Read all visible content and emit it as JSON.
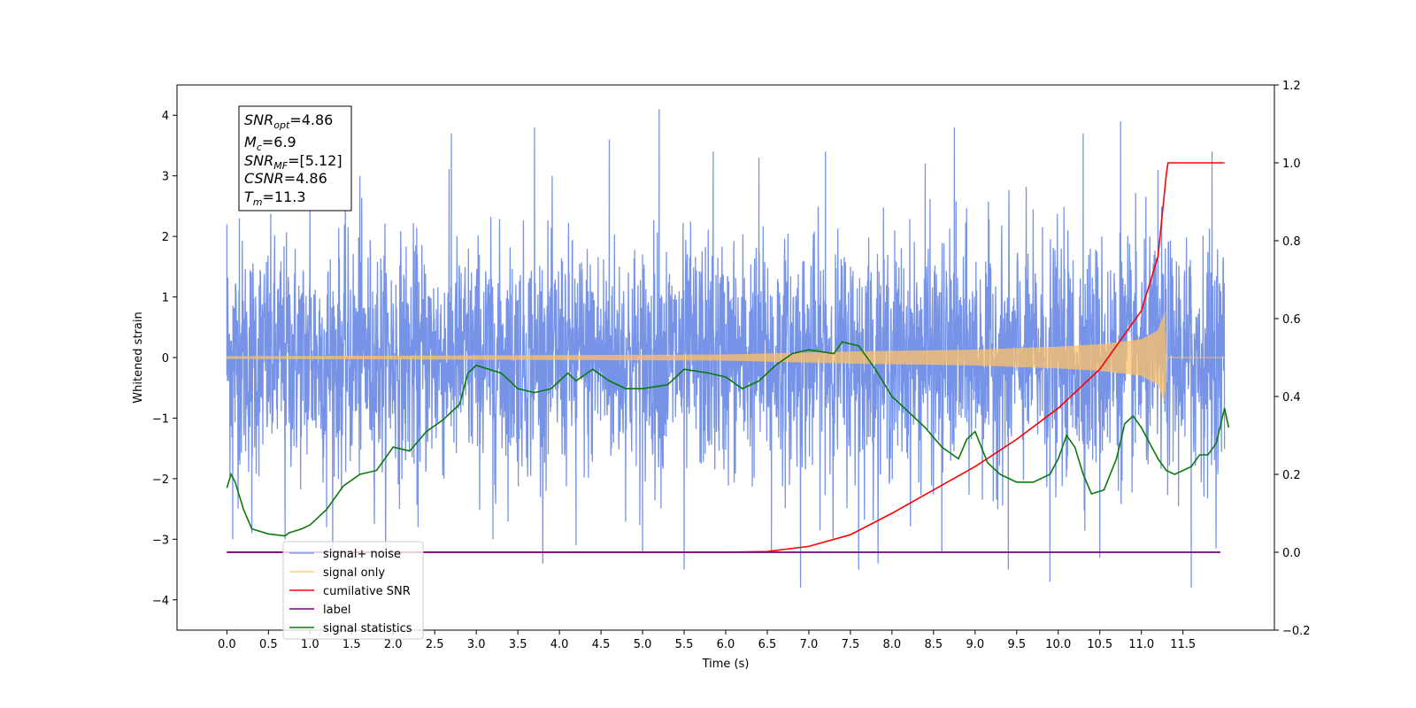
{
  "chart_data": {
    "type": "line",
    "xlabel": "Time (s)",
    "ylabel": "Whitened strain",
    "xlim": [
      -0.6,
      12.6
    ],
    "ylim": [
      -4.5,
      4.5
    ],
    "y2lim": [
      -0.2,
      1.2
    ],
    "x_ticks": [
      "0.0",
      "0.5",
      "1.0",
      "1.5",
      "2.0",
      "2.5",
      "3.0",
      "3.5",
      "4.0",
      "4.5",
      "5.0",
      "5.5",
      "6.0",
      "6.5",
      "7.0",
      "7.5",
      "8.0",
      "8.5",
      "9.0",
      "9.5",
      "10.0",
      "10.5",
      "11.0",
      "11.5"
    ],
    "y_ticks": [
      "4",
      "3",
      "2",
      "1",
      "0",
      "−1",
      "−2",
      "−3",
      "−4"
    ],
    "y2_ticks": [
      "1.2",
      "1.0",
      "0.8",
      "0.6",
      "0.4",
      "0.2",
      "0.0",
      "−0.2"
    ],
    "grid": false,
    "legend_position": "lower-left",
    "annotation": {
      "snr_opt": "=4.86",
      "mc": "=6.9",
      "snr_mf": "=[5.12]",
      "csnr": "=4.86",
      "tm": "=11.3"
    },
    "series": [
      {
        "name": "signal+ noise",
        "axis": "left",
        "color": "#6f8de6",
        "description": "whitened noise with occasional peaks",
        "x_range": [
          0.0,
          12.0
        ],
        "points": [
          [
            0.0,
            2.2
          ],
          [
            0.07,
            -3.0
          ],
          [
            0.15,
            2.3
          ],
          [
            0.3,
            -2.9
          ],
          [
            0.7,
            -3.0
          ],
          [
            1.0,
            2.5
          ],
          [
            1.2,
            -2.8
          ],
          [
            1.6,
            3.0
          ],
          [
            2.3,
            -2.8
          ],
          [
            2.7,
            3.7
          ],
          [
            3.2,
            -3.0
          ],
          [
            3.7,
            3.8
          ],
          [
            4.2,
            -3.1
          ],
          [
            4.6,
            3.6
          ],
          [
            5.0,
            -3.2
          ],
          [
            5.2,
            4.1
          ],
          [
            5.5,
            -3.5
          ],
          [
            5.85,
            3.4
          ],
          [
            6.4,
            3.3
          ],
          [
            6.55,
            -3.2
          ],
          [
            6.9,
            -3.8
          ],
          [
            7.2,
            3.4
          ],
          [
            7.6,
            -3.5
          ],
          [
            8.4,
            3.2
          ],
          [
            8.6,
            -3.2
          ],
          [
            8.75,
            3.8
          ],
          [
            9.4,
            -3.5
          ],
          [
            9.9,
            -3.7
          ],
          [
            10.3,
            3.7
          ],
          [
            10.5,
            -3.3
          ],
          [
            10.75,
            3.9
          ],
          [
            11.2,
            3.1
          ],
          [
            11.6,
            -3.8
          ],
          [
            11.85,
            3.4
          ],
          [
            11.9,
            -1.9
          ]
        ]
      },
      {
        "name": "signal only",
        "axis": "left",
        "color": "#ffc266",
        "description": "chirp waveform, amplitude grows until merger near 11.3 s",
        "x_range": [
          0.0,
          12.0
        ],
        "envelope": [
          [
            0.0,
            0.02
          ],
          [
            6.0,
            0.05
          ],
          [
            7.5,
            0.1
          ],
          [
            9.0,
            0.13
          ],
          [
            10.0,
            0.18
          ],
          [
            10.5,
            0.22
          ],
          [
            11.0,
            0.3
          ],
          [
            11.2,
            0.45
          ],
          [
            11.28,
            0.75
          ],
          [
            11.3,
            0.0
          ],
          [
            12.0,
            0.0
          ]
        ]
      },
      {
        "name": "cumilative SNR",
        "axis": "right",
        "color": "#ff0000",
        "points": [
          [
            0.0,
            0.0
          ],
          [
            6.0,
            0.0
          ],
          [
            6.5,
            0.002
          ],
          [
            7.0,
            0.015
          ],
          [
            7.5,
            0.045
          ],
          [
            8.0,
            0.1
          ],
          [
            8.5,
            0.16
          ],
          [
            9.0,
            0.22
          ],
          [
            9.5,
            0.29
          ],
          [
            10.0,
            0.37
          ],
          [
            10.5,
            0.47
          ],
          [
            11.0,
            0.62
          ],
          [
            11.2,
            0.76
          ],
          [
            11.3,
            0.97
          ],
          [
            11.32,
            1.0
          ],
          [
            12.0,
            1.0
          ]
        ]
      },
      {
        "name": "label",
        "axis": "right",
        "color": "#800080",
        "points": [
          [
            0.0,
            0.0
          ],
          [
            11.95,
            0.0
          ]
        ]
      },
      {
        "name": "signal statistics",
        "axis": "right",
        "color": "#0b7a0b",
        "points": [
          [
            0.0,
            0.165
          ],
          [
            0.05,
            0.2
          ],
          [
            0.1,
            0.18
          ],
          [
            0.2,
            0.11
          ],
          [
            0.3,
            0.06
          ],
          [
            0.5,
            0.047
          ],
          [
            0.7,
            0.042
          ],
          [
            0.75,
            0.05
          ],
          [
            0.9,
            0.06
          ],
          [
            1.0,
            0.07
          ],
          [
            1.2,
            0.11
          ],
          [
            1.4,
            0.17
          ],
          [
            1.6,
            0.2
          ],
          [
            1.8,
            0.21
          ],
          [
            2.0,
            0.27
          ],
          [
            2.2,
            0.26
          ],
          [
            2.4,
            0.31
          ],
          [
            2.6,
            0.34
          ],
          [
            2.8,
            0.38
          ],
          [
            2.9,
            0.46
          ],
          [
            3.0,
            0.48
          ],
          [
            3.3,
            0.46
          ],
          [
            3.5,
            0.42
          ],
          [
            3.7,
            0.41
          ],
          [
            3.9,
            0.42
          ],
          [
            4.1,
            0.46
          ],
          [
            4.2,
            0.44
          ],
          [
            4.4,
            0.47
          ],
          [
            4.6,
            0.44
          ],
          [
            4.8,
            0.42
          ],
          [
            5.0,
            0.42
          ],
          [
            5.3,
            0.43
          ],
          [
            5.5,
            0.47
          ],
          [
            5.8,
            0.46
          ],
          [
            6.0,
            0.45
          ],
          [
            6.2,
            0.42
          ],
          [
            6.4,
            0.44
          ],
          [
            6.6,
            0.48
          ],
          [
            6.8,
            0.51
          ],
          [
            7.0,
            0.52
          ],
          [
            7.3,
            0.51
          ],
          [
            7.4,
            0.54
          ],
          [
            7.6,
            0.53
          ],
          [
            7.8,
            0.47
          ],
          [
            8.0,
            0.4
          ],
          [
            8.2,
            0.36
          ],
          [
            8.4,
            0.32
          ],
          [
            8.6,
            0.27
          ],
          [
            8.8,
            0.24
          ],
          [
            8.9,
            0.29
          ],
          [
            9.0,
            0.31
          ],
          [
            9.15,
            0.23
          ],
          [
            9.3,
            0.2
          ],
          [
            9.5,
            0.18
          ],
          [
            9.7,
            0.18
          ],
          [
            9.9,
            0.2
          ],
          [
            10.0,
            0.24
          ],
          [
            10.1,
            0.3
          ],
          [
            10.2,
            0.27
          ],
          [
            10.3,
            0.2
          ],
          [
            10.4,
            0.15
          ],
          [
            10.55,
            0.16
          ],
          [
            10.7,
            0.24
          ],
          [
            10.8,
            0.33
          ],
          [
            10.9,
            0.35
          ],
          [
            11.0,
            0.32
          ],
          [
            11.1,
            0.28
          ],
          [
            11.2,
            0.24
          ],
          [
            11.3,
            0.21
          ],
          [
            11.4,
            0.2
          ],
          [
            11.6,
            0.22
          ],
          [
            11.7,
            0.25
          ],
          [
            11.8,
            0.25
          ],
          [
            11.9,
            0.28
          ],
          [
            12.0,
            0.37
          ],
          [
            12.05,
            0.32
          ]
        ]
      }
    ]
  }
}
